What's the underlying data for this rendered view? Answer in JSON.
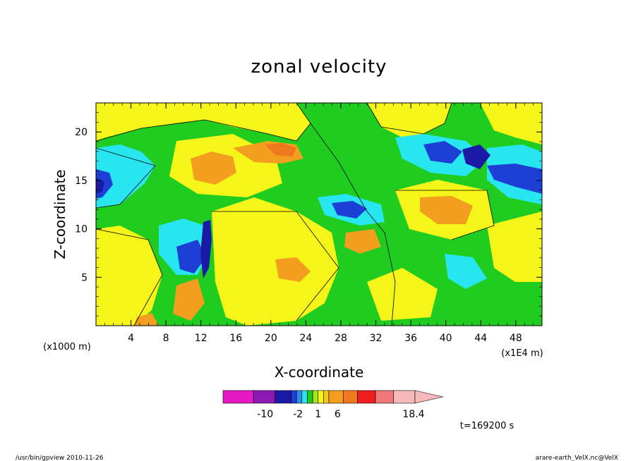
{
  "chart_data": {
    "type": "heatmap",
    "title": "zonal velocity",
    "xlabel": "X-coordinate",
    "ylabel": "Z-coordinate",
    "x_units": "(x1E4 m)",
    "y_units": "(x1000 m)",
    "xlim": [
      0,
      51
    ],
    "ylim": [
      0,
      23
    ],
    "x_ticks": [
      "4",
      "8",
      "12",
      "16",
      "20",
      "24",
      "28",
      "32",
      "36",
      "40",
      "44",
      "48"
    ],
    "y_ticks": [
      "5",
      "10",
      "15",
      "20"
    ],
    "colorbar": {
      "colors": [
        "#e619c4",
        "#8c19b3",
        "#1a1aa6",
        "#1e3fd6",
        "#2a8cf0",
        "#27e6f0",
        "#20cc20",
        "#a8e61e",
        "#f5f519",
        "#f5c81e",
        "#f29e1e",
        "#f0781e",
        "#f01e1e",
        "#f07878",
        "#f5b9b9"
      ],
      "tick_labels": [
        "-10",
        "-2",
        "1",
        "6",
        "18.4"
      ],
      "min": -14,
      "max": 18.4
    },
    "time_label": "t=169200 s"
  },
  "footer": {
    "left": "/usr/bin/gpview   2010-11-26",
    "right": "arare-earth_VelX.nc@VelX"
  }
}
